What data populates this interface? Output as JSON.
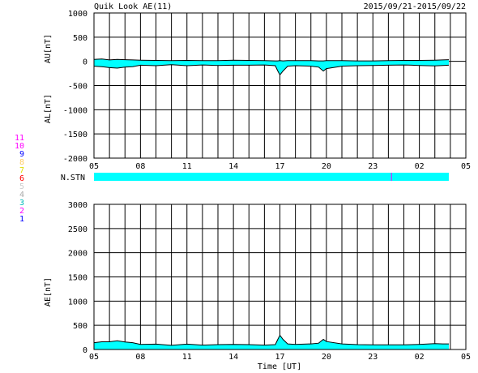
{
  "header": {
    "title": "Quik Look AE(11)",
    "date_range": "2015/09/21-2015/09/22"
  },
  "station_legend": {
    "items": [
      {
        "label": "11",
        "color": "#ff00ff"
      },
      {
        "label": "10",
        "color": "#ff00ff"
      },
      {
        "label": "9",
        "color": "#0000ff"
      },
      {
        "label": "8",
        "color": "#ffcc66"
      },
      {
        "label": "7",
        "color": "#dddd00"
      },
      {
        "label": "6",
        "color": "#ff0000"
      },
      {
        "label": "5",
        "color": "#cccccc"
      },
      {
        "label": "4",
        "color": "#aaaaaa"
      },
      {
        "label": "3",
        "color": "#00bbbb"
      },
      {
        "label": "2",
        "color": "#ff00ff"
      },
      {
        "label": "1",
        "color": "#0000ff"
      }
    ]
  },
  "colors": {
    "fill": "#00ffff",
    "line": "#000000",
    "grid": "#000000",
    "stn_marker": "#ff00ff"
  },
  "xaxis": {
    "label": "Time [UT]",
    "tick_labels": [
      "05",
      "08",
      "11",
      "14",
      "17",
      "20",
      "23",
      "02",
      "05"
    ]
  },
  "chart_data": [
    {
      "type": "area",
      "name": "AU/AL",
      "ylabel_upper": "AU[nT]",
      "ylabel_lower": "AL[nT]",
      "ylim": [
        -2000,
        1000
      ],
      "yticks": [
        1000,
        500,
        0,
        -500,
        -1000,
        -1500,
        -2000
      ],
      "xlim_hours": [
        5,
        29
      ],
      "grid": true,
      "x_hours": [
        5.0,
        5.5,
        6.0,
        6.5,
        7.0,
        7.5,
        8.0,
        9.0,
        10.0,
        11.0,
        12.0,
        13.0,
        14.0,
        15.0,
        16.0,
        16.7,
        16.85,
        17.0,
        17.2,
        17.5,
        18.0,
        19.0,
        19.5,
        19.8,
        20.0,
        21.0,
        22.0,
        23.0,
        24.0,
        25.0,
        26.0,
        27.0,
        27.5,
        27.9
      ],
      "au": [
        40,
        50,
        30,
        40,
        35,
        30,
        25,
        20,
        15,
        20,
        15,
        15,
        25,
        20,
        15,
        10,
        10,
        15,
        10,
        15,
        15,
        15,
        10,
        10,
        15,
        15,
        10,
        10,
        15,
        20,
        20,
        25,
        30,
        35
      ],
      "al": [
        -100,
        -110,
        -130,
        -140,
        -120,
        -110,
        -80,
        -90,
        -70,
        -90,
        -75,
        -85,
        -80,
        -80,
        -75,
        -90,
        -190,
        -280,
        -200,
        -100,
        -90,
        -100,
        -120,
        -200,
        -150,
        -100,
        -90,
        -85,
        -80,
        -75,
        -85,
        -95,
        -85,
        -80
      ]
    },
    {
      "type": "bar",
      "name": "N.STN",
      "label": "N.STN",
      "xlim_hours": [
        5,
        29
      ],
      "range_hours": [
        5.0,
        27.9
      ],
      "markers_hours": [
        24.2
      ]
    },
    {
      "type": "area",
      "name": "AE",
      "ylabel": "AE[nT]",
      "ylim": [
        0,
        3000
      ],
      "yticks": [
        3000,
        2500,
        2000,
        1500,
        1000,
        500,
        0
      ],
      "xlim_hours": [
        5,
        29
      ],
      "grid": true,
      "x_hours": [
        5.0,
        5.5,
        6.0,
        6.5,
        7.0,
        7.5,
        8.0,
        9.0,
        10.0,
        11.0,
        12.0,
        13.0,
        14.0,
        15.0,
        16.0,
        16.7,
        16.85,
        17.0,
        17.2,
        17.5,
        18.0,
        19.0,
        19.5,
        19.8,
        20.0,
        21.0,
        22.0,
        23.0,
        24.0,
        25.0,
        26.0,
        27.0,
        27.5,
        27.9
      ],
      "ae": [
        140,
        160,
        160,
        180,
        155,
        140,
        105,
        110,
        85,
        110,
        90,
        100,
        105,
        100,
        90,
        100,
        200,
        295,
        210,
        115,
        105,
        115,
        130,
        210,
        165,
        115,
        100,
        95,
        95,
        95,
        105,
        120,
        115,
        115
      ]
    }
  ]
}
